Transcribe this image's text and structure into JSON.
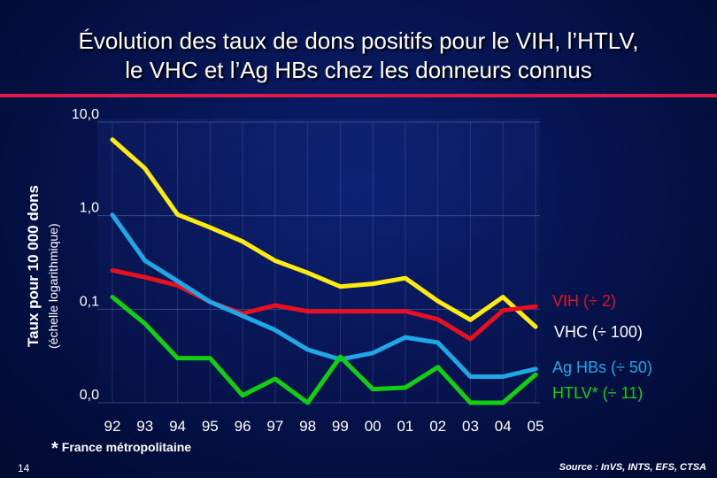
{
  "page_number": "14",
  "footnote": {
    "marker": "*",
    "text": "France métropolitaine"
  },
  "source": "Source : InVS, INTS, EFS, CTSA",
  "chart_data": {
    "type": "line",
    "title_lines": [
      "Évolution des taux de dons positifs pour le VIH, l’HTLV,",
      "le VHC et l’Ag HBs chez les donneurs connus"
    ],
    "ylabel": "Taux pour 10 000 dons",
    "ylabel_sub": "(échelle logarithmique)",
    "xlabel": "",
    "y_scale": "log",
    "ylim": [
      0.01,
      10
    ],
    "y_ticks": [
      {
        "value": 10,
        "label": "10,0"
      },
      {
        "value": 1,
        "label": "1,0"
      },
      {
        "value": 0.1,
        "label": "0,1"
      },
      {
        "value": 0.01,
        "label": "0,0"
      }
    ],
    "categories": [
      "92",
      "93",
      "94",
      "95",
      "96",
      "97",
      "98",
      "99",
      "00",
      "01",
      "02",
      "03",
      "04",
      "05"
    ],
    "grid": true,
    "legend": "right",
    "series": [
      {
        "name": "VHC (÷ 100)",
        "color": "#ffeb10",
        "values": [
          6.5,
          3.2,
          1.03,
          0.75,
          0.53,
          0.33,
          0.245,
          0.175,
          0.187,
          0.215,
          0.122,
          0.077,
          0.135,
          0.065
        ]
      },
      {
        "name": "VIH (÷ 2)",
        "color": "#e8101e",
        "values": [
          0.26,
          0.22,
          0.18,
          0.12,
          0.09,
          0.11,
          0.095,
          0.095,
          0.095,
          0.095,
          0.078,
          0.048,
          0.097,
          0.107
        ]
      },
      {
        "name": "Ag HBs (÷ 50)",
        "color": "#1ea8e8",
        "values": [
          1.02,
          0.33,
          0.2,
          0.12,
          0.085,
          0.06,
          0.037,
          0.029,
          0.034,
          0.05,
          0.044,
          0.019,
          0.019,
          0.023
        ]
      },
      {
        "name": "HTLV* (÷ 11)",
        "color": "#10d010",
        "values": [
          0.135,
          0.07,
          0.03,
          0.03,
          0.012,
          0.018,
          0.01,
          0.031,
          0.014,
          0.0145,
          0.024,
          0.01,
          0.01,
          0.02
        ]
      }
    ]
  }
}
